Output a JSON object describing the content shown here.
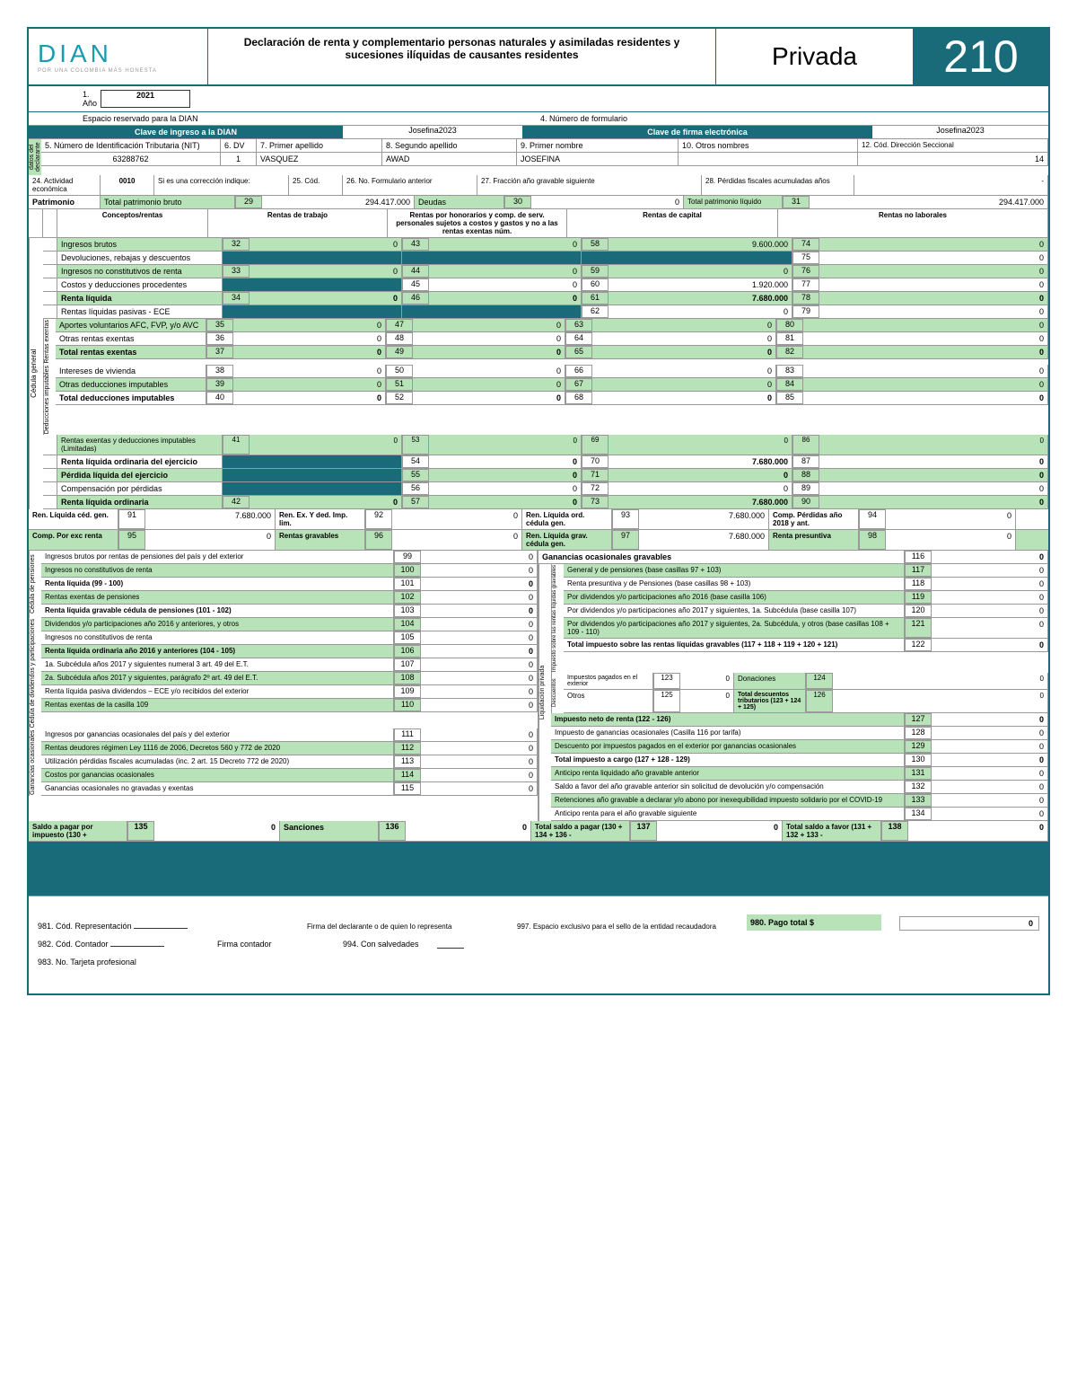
{
  "header": {
    "logo": "DIAN",
    "logo_sub": "POR UNA COLOMBIA MÁS HONESTA",
    "title": "Declaración de renta y complementario personas naturales y asimiladas residentes y sucesiones ilíquidas de causantes residentes",
    "privada": "Privada",
    "form_number": "210"
  },
  "info": {
    "year_label": "1. Año",
    "year": "2021",
    "reserved": "Espacio reservado para la DIAN",
    "form_num_label": "4. Número de formulario",
    "clave_ingreso": "Clave de ingreso a la DIAN",
    "clave_ingreso_val": "Josefina2023",
    "clave_firma": "Clave de firma electrónica",
    "clave_firma_val": "Josefina2023",
    "nit_label": "5. Número de Identificación Tributaria (NIT)",
    "nit": "63288762",
    "dv_label": "6. DV",
    "dv": "1",
    "apellido1_label": "7. Primer apellido",
    "apellido1": "VASQUEZ",
    "apellido2_label": "8. Segundo apellido",
    "apellido2": "AWAD",
    "nombre1_label": "9. Primer nombre",
    "nombre1": "JOSEFINA",
    "nombre2_label": "10. Otros nombres",
    "dir_label": "12. Cód. Dirección Seccional",
    "dir": "14",
    "actividad_label": "24. Actividad económica",
    "actividad": "0010",
    "correccion": "Si es una corrección indique:",
    "cod25": "25. Cód.",
    "form_ant": "26. No. Formulario anterior",
    "fraccion": "27. Fracción año gravable siguiente",
    "perdidas": "28. Pérdidas fiscales acumuladas años",
    "perdidas_val": "-"
  },
  "patrimonio": {
    "label": "Patrimonio",
    "bruto_label": "Total patrimonio bruto",
    "bruto_num": "29",
    "bruto_val": "294.417.000",
    "deudas_label": "Deudas",
    "deudas_num": "30",
    "deudas_val": "0",
    "liquido_label": "Total patrimonio líquido",
    "liquido_num": "31",
    "liquido_val": "294.417.000"
  },
  "headers": {
    "conceptos": "Conceptos/rentas",
    "trabajo": "Rentas de trabajo",
    "honorarios": "Rentas por honorarios y comp. de serv. personales sujetos a costos y gastos y no a las rentas exentas núm.",
    "capital": "Rentas de capital",
    "no_laborales": "Rentas no laborales"
  },
  "rows": [
    {
      "label": "Ingresos brutos",
      "green": true,
      "c": [
        [
          "32",
          "0"
        ],
        [
          "43",
          "0"
        ],
        [
          "58",
          "9.600.000"
        ],
        [
          "74",
          "0"
        ]
      ]
    },
    {
      "label": "Devoluciones, rebajas y descuentos",
      "c": [
        [
          "",
          ""
        ],
        [
          "",
          ""
        ],
        [
          "",
          ""
        ],
        [
          "75",
          "0"
        ]
      ]
    },
    {
      "label": "Ingresos no constitutivos de renta",
      "green": true,
      "c": [
        [
          "33",
          "0"
        ],
        [
          "44",
          "0"
        ],
        [
          "59",
          "0"
        ],
        [
          "76",
          "0"
        ]
      ]
    },
    {
      "label": "Costos y deducciones procedentes",
      "c": [
        [
          "",
          ""
        ],
        [
          "45",
          "0"
        ],
        [
          "60",
          "1.920.000"
        ],
        [
          "77",
          "0"
        ]
      ]
    },
    {
      "label": "Renta líquida",
      "green": true,
      "bold": true,
      "c": [
        [
          "34",
          "0"
        ],
        [
          "46",
          "0"
        ],
        [
          "61",
          "7.680.000"
        ],
        [
          "78",
          "0"
        ]
      ]
    },
    {
      "label": "Rentas líquidas pasivas - ECE",
      "c": [
        [
          "",
          ""
        ],
        [
          "",
          ""
        ],
        [
          "62",
          "0"
        ],
        [
          "79",
          "0"
        ]
      ]
    }
  ],
  "exentas": [
    {
      "label": "Aportes voluntarios AFC, FVP, y/o AVC",
      "green": true,
      "c": [
        [
          "35",
          "0"
        ],
        [
          "47",
          "0"
        ],
        [
          "63",
          "0"
        ],
        [
          "80",
          "0"
        ]
      ]
    },
    {
      "label": "Otras rentas exentas",
      "c": [
        [
          "36",
          "0"
        ],
        [
          "48",
          "0"
        ],
        [
          "64",
          "0"
        ],
        [
          "81",
          "0"
        ]
      ]
    },
    {
      "label": "Total rentas exentas",
      "green": true,
      "bold": true,
      "c": [
        [
          "37",
          "0"
        ],
        [
          "49",
          "0"
        ],
        [
          "65",
          "0"
        ],
        [
          "82",
          "0"
        ]
      ]
    }
  ],
  "deducciones": [
    {
      "label": "Intereses de vivienda",
      "c": [
        [
          "38",
          "0"
        ],
        [
          "50",
          "0"
        ],
        [
          "66",
          "0"
        ],
        [
          "83",
          "0"
        ]
      ]
    },
    {
      "label": "Otras deducciones imputables",
      "green": true,
      "c": [
        [
          "39",
          "0"
        ],
        [
          "51",
          "0"
        ],
        [
          "67",
          "0"
        ],
        [
          "84",
          "0"
        ]
      ]
    },
    {
      "label": "Total deducciones imputables",
      "bold": true,
      "c": [
        [
          "40",
          "0"
        ],
        [
          "52",
          "0"
        ],
        [
          "68",
          "0"
        ],
        [
          "85",
          "0"
        ]
      ]
    }
  ],
  "finals": [
    {
      "label": "Rentas exentas y deducciones imputables (Limitadas)",
      "green": true,
      "small": true,
      "c": [
        [
          "41",
          "0"
        ],
        [
          "53",
          "0"
        ],
        [
          "69",
          "0"
        ],
        [
          "86",
          "0"
        ]
      ]
    },
    {
      "label": "Renta líquida ordinaria del ejercicio",
      "bold": true,
      "c": [
        [
          "",
          ""
        ],
        [
          "54",
          "0"
        ],
        [
          "70",
          "7.680.000"
        ],
        [
          "87",
          "0"
        ]
      ]
    },
    {
      "label": "Pérdida líquida del ejercicio",
      "green": true,
      "bold": true,
      "c": [
        [
          "",
          ""
        ],
        [
          "55",
          "0"
        ],
        [
          "71",
          "0"
        ],
        [
          "88",
          "0"
        ]
      ]
    },
    {
      "label": "Compensación por pérdidas",
      "c": [
        [
          "",
          ""
        ],
        [
          "56",
          "0"
        ],
        [
          "72",
          "0"
        ],
        [
          "89",
          "0"
        ]
      ]
    },
    {
      "label": "Renta líquida ordinaria",
      "green": true,
      "bold": true,
      "c": [
        [
          "42",
          "0"
        ],
        [
          "57",
          "0"
        ],
        [
          "73",
          "7.680.000"
        ],
        [
          "90",
          "0"
        ]
      ]
    }
  ],
  "summary": [
    {
      "l": "Ren. Líquida céd. gen.",
      "n": "91",
      "v": "7.680.000"
    },
    {
      "l": "Ren. Ex. Y ded. Imp. lim.",
      "n": "92",
      "v": "0"
    },
    {
      "l": "Ren. Líquida ord. cédula gen.",
      "n": "93",
      "v": "7.680.000"
    },
    {
      "l": "Comp. Pérdidas año 2018 y ant.",
      "n": "94",
      "v": "0"
    },
    {
      "l": "Comp. Por exc renta",
      "n": "95",
      "v": "0"
    },
    {
      "l": "Rentas gravables",
      "n": "96",
      "v": "0"
    },
    {
      "l": "Ren. Líquida grav. cédula gen.",
      "n": "97",
      "v": "7.680.000"
    },
    {
      "l": "Renta presuntiva",
      "n": "98",
      "v": "0"
    }
  ],
  "pensiones": [
    {
      "l": "Ingresos brutos por rentas de pensiones del país y del exterior",
      "n": "99",
      "v": "0"
    },
    {
      "l": "Ingresos no constitutivos de renta",
      "n": "100",
      "v": "0",
      "g": true
    },
    {
      "l": "Renta líquida (99 - 100)",
      "n": "101",
      "v": "0",
      "b": true
    },
    {
      "l": "Rentas exentas de pensiones",
      "n": "102",
      "v": "0",
      "g": true
    },
    {
      "l": "Renta líquida gravable cédula de pensiones (101 - 102)",
      "n": "103",
      "v": "0",
      "b": true
    }
  ],
  "dividendos": [
    {
      "l": "Dividendos y/o participaciones año 2016 y anteriores, y otros",
      "n": "104",
      "v": "0",
      "g": true
    },
    {
      "l": "Ingresos no constitutivos de renta",
      "n": "105",
      "v": "0"
    },
    {
      "l": "Renta líquida ordinaria año 2016 y anteriores (104 - 105)",
      "n": "106",
      "v": "0",
      "g": true,
      "b": true
    },
    {
      "l": "1a. Subcédula años 2017 y siguientes numeral 3 art. 49 del E.T.",
      "n": "107",
      "v": "0"
    },
    {
      "l": "2a. Subcédula años 2017 y siguientes, parágrafo 2º art. 49 del E.T.",
      "n": "108",
      "v": "0",
      "g": true
    },
    {
      "l": "Renta líquida pasiva dividendos – ECE y/o recibidos del exterior",
      "n": "109",
      "v": "0"
    },
    {
      "l": "Rentas exentas de la casilla 109",
      "n": "110",
      "v": "0",
      "g": true
    }
  ],
  "ganancias": [
    {
      "l": "Ingresos por ganancias ocasionales del país y del exterior",
      "n": "111",
      "v": "0"
    },
    {
      "l": "Rentas deudores régimen Ley 1116 de 2006, Decretos 560 y 772 de 2020",
      "n": "112",
      "v": "0",
      "g": true
    },
    {
      "l": "Utilización pérdidas fiscales acumuladas (inc. 2 art. 15 Decreto 772 de 2020)",
      "n": "113",
      "v": "0"
    },
    {
      "l": "Costos por ganancias ocasionales",
      "n": "114",
      "v": "0",
      "g": true
    },
    {
      "l": "Ganancias ocasionales no gravadas y exentas",
      "n": "115",
      "v": "0"
    }
  ],
  "right_col": {
    "go_grav": {
      "l": "Ganancias ocasionales gravables",
      "n": "116",
      "v": "0",
      "b": true
    },
    "items": [
      {
        "l": "General y de pensiones (base casillas 97 + 103)",
        "n": "117",
        "v": "0",
        "g": true
      },
      {
        "l": "Renta presuntiva y de Pensiones (base casillas 98 + 103)",
        "n": "118",
        "v": "0"
      },
      {
        "l": "Por dividendos y/o participaciones año 2016 (base casilla 106)",
        "n": "119",
        "v": "0",
        "g": true
      },
      {
        "l": "Por dividendos y/o participaciones año 2017 y siguientes, 1a. Subcédula (base casilla 107)",
        "n": "120",
        "v": "0"
      },
      {
        "l": "Por dividendos y/o participaciones año 2017 y siguientes, 2a. Subcédula, y otros (base casillas 108 + 109 - 110)",
        "n": "121",
        "v": "0",
        "g": true
      },
      {
        "l": "Total impuesto sobre las rentas líquidas gravables (117 + 118 + 119 + 120 + 121)",
        "n": "122",
        "v": "0",
        "b": true
      }
    ],
    "descuentos": [
      {
        "l": "Impuestos pagados en el exterior",
        "n": "123",
        "v": "0"
      },
      {
        "l": "Donaciones",
        "n": "124",
        "v": "0"
      },
      {
        "l": "Otros",
        "n": "125",
        "v": "0"
      },
      {
        "l": "Total descuentos tributarios (123 + 124 + 125)",
        "n": "126",
        "v": "0"
      }
    ],
    "liquidacion": [
      {
        "l": "Impuesto neto de renta (122 - 126)",
        "n": "127",
        "v": "0",
        "g": true,
        "b": true
      },
      {
        "l": "Impuesto de ganancias ocasionales (Casilla 116 por tarifa)",
        "n": "128",
        "v": "0"
      },
      {
        "l": "Descuento por impuestos pagados en el exterior por ganancias ocasionales",
        "n": "129",
        "v": "0",
        "g": true
      },
      {
        "l": "Total impuesto a cargo (127 + 128 - 129)",
        "n": "130",
        "v": "0",
        "b": true
      },
      {
        "l": "Anticipo renta liquidado año gravable anterior",
        "n": "131",
        "v": "0",
        "g": true
      },
      {
        "l": "Saldo a favor del año gravable anterior sin solicitud de devolución y/o compensación",
        "n": "132",
        "v": "0"
      },
      {
        "l": "Retenciones año gravable a declarar y/o abono por inexequibilidad impuesto solidario por el COVID-19",
        "n": "133",
        "v": "0",
        "g": true
      },
      {
        "l": "Anticipo renta para el año gravable siguiente",
        "n": "134",
        "v": "0"
      }
    ]
  },
  "totals": {
    "saldo_pagar": {
      "l": "Saldo a pagar por impuesto (130 +",
      "n": "135",
      "v": "0"
    },
    "sanciones": {
      "l": "Sanciones",
      "n": "136",
      "v": "0"
    },
    "total_pagar": {
      "l": "Total saldo a pagar (130 + 134 + 136 -",
      "n": "137",
      "v": "0"
    },
    "total_favor": {
      "l": "Total saldo a favor (131 + 132 + 133 -",
      "n": "138",
      "v": "0"
    }
  },
  "signature": {
    "cod_rep": "981. Cód. Representación",
    "firma_decl": "Firma del declarante o de quien lo representa",
    "espacio": "997. Espacio exclusivo para el sello de la entidad recaudadora",
    "pago_total": "980. Pago total $",
    "pago_val": "0",
    "cod_cont": "982. Cód. Contador",
    "firma_cont": "Firma contador",
    "salvedades": "994. Con salvedades",
    "tarjeta": "983. No. Tarjeta profesional"
  },
  "vert": {
    "datos": "datos del declarante",
    "cedula_gen": "Cédula general",
    "rentas_ex": "Rentas exentas",
    "ded_imp": "Deducciones imputables",
    "pensiones": "Cédula de pensiones",
    "dividendos": "Cédula de dividendos y participaciones",
    "ganancias": "Ganancias ocasionales",
    "liq_priv": "Liquidación privada",
    "imp_rentas": "Impuesto sobre las rentas líquidas gravables",
    "descuentos": "Descuentos"
  }
}
